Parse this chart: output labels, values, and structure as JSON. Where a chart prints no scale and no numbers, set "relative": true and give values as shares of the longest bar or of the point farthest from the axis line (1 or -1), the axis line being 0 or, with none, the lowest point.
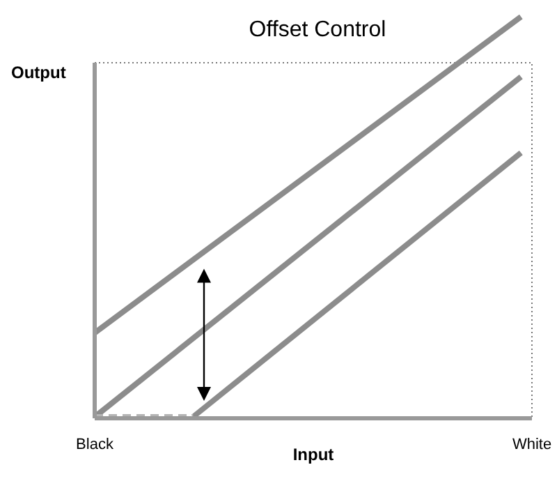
{
  "chart_data": {
    "type": "line",
    "title": "Offset Control",
    "xlabel": "Input",
    "ylabel": "Output",
    "relative": true,
    "categories": [
      "Black",
      null,
      null,
      null,
      null,
      null,
      null,
      null,
      null,
      null,
      null,
      null,
      null,
      null,
      null,
      null,
      null,
      null,
      null,
      null,
      null,
      null,
      null,
      null,
      null,
      null,
      null,
      null,
      null,
      null,
      null,
      null,
      null,
      null,
      null,
      null,
      null,
      null,
      null,
      null,
      "White"
    ],
    "marker": "none",
    "line_style": "solid",
    "series": [
      {
        "color": "#8c8c8c",
        "values": [
          0.21,
          null,
          null,
          null,
          null,
          null,
          null,
          null,
          null,
          null,
          null,
          null,
          null,
          null,
          null,
          null,
          null,
          null,
          null,
          null,
          null,
          null,
          null,
          null,
          null,
          null,
          null,
          null,
          null,
          null,
          null,
          null,
          null,
          null,
          null,
          null,
          null,
          null,
          null,
          1,
          null
        ]
      },
      {
        "color": "#8c8c8c",
        "values": [
          0,
          null,
          null,
          null,
          null,
          null,
          null,
          null,
          null,
          null,
          null,
          null,
          null,
          null,
          null,
          null,
          null,
          null,
          null,
          null,
          null,
          null,
          null,
          null,
          null,
          null,
          null,
          null,
          null,
          null,
          null,
          null,
          null,
          null,
          null,
          null,
          null,
          null,
          null,
          0.85,
          null
        ]
      },
      {
        "color": "#8c8c8c",
        "values": [
          null,
          null,
          null,
          null,
          null,
          null,
          null,
          null,
          null,
          0,
          null,
          null,
          null,
          null,
          null,
          null,
          null,
          null,
          null,
          null,
          null,
          null,
          null,
          null,
          null,
          null,
          null,
          null,
          null,
          null,
          null,
          null,
          null,
          null,
          null,
          null,
          null,
          null,
          null,
          0.66,
          null
        ]
      },
      {
        "color": "#b4b4b4",
        "line_style": "dashed",
        "values": [
          0,
          null,
          null,
          null,
          null,
          null,
          null,
          null,
          null,
          0,
          null,
          null,
          null,
          null,
          null,
          null,
          null,
          null,
          null,
          null,
          null,
          null,
          null,
          null,
          null,
          null,
          null,
          null,
          null,
          null,
          null,
          null,
          null,
          null,
          null,
          null,
          null,
          null,
          null,
          null,
          null
        ]
      }
    ]
  }
}
